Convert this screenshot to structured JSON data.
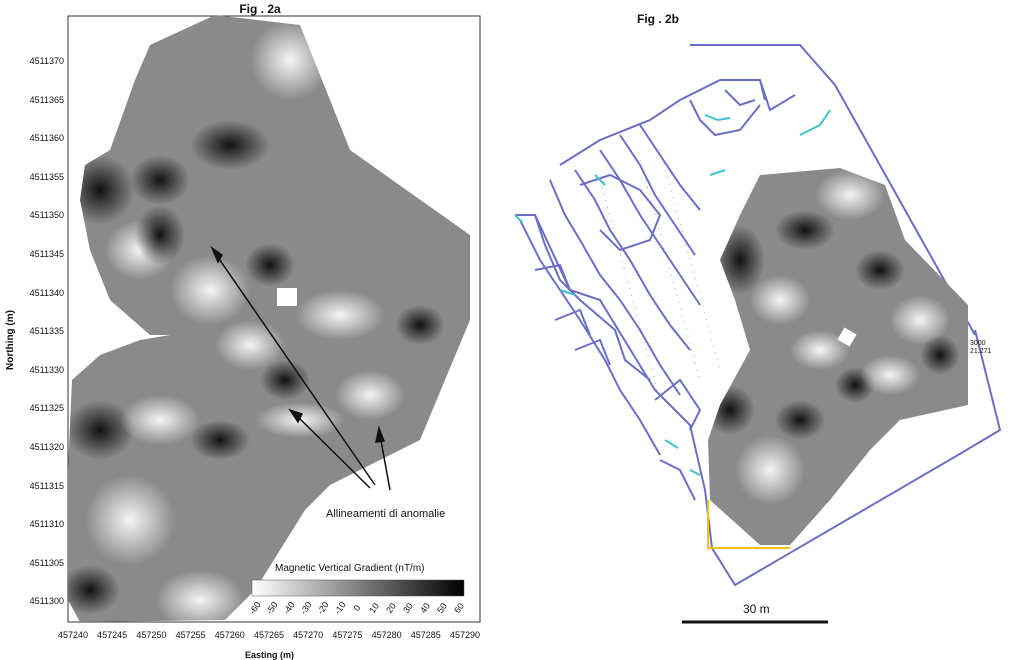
{
  "fig_a": {
    "title": "Fig . 2a",
    "ylabel": "Northing (m)",
    "xlabel": "Easting (m)",
    "yticks": [
      "4511370",
      "4511365",
      "4511360",
      "4511355",
      "4511350",
      "4511345",
      "4511340",
      "4511335",
      "4511330",
      "4511325",
      "4511320",
      "4511315",
      "4511310",
      "4511305",
      "4511300"
    ],
    "xticks": [
      "457240",
      "457245",
      "457250",
      "457255",
      "457260",
      "457265",
      "457270",
      "457275",
      "457280",
      "457285",
      "457290"
    ],
    "annotation": "Allineamenti di anomalie",
    "legend_title": "Magnetic Vertical Gradient (nT/m)",
    "legend_ticks": [
      "-60",
      "-50",
      "-40",
      "-30",
      "-20",
      "-10",
      "0",
      "10",
      "20",
      "30",
      "40",
      "50",
      "60"
    ]
  },
  "fig_b": {
    "title": "Fig . 2b",
    "marker_line1": "3000",
    "marker_line2": "21.271",
    "scale_label": "30 m"
  },
  "colors": {
    "plan_lines": "#6a6fc4",
    "plan_cyan": "#3fc0d0",
    "plan_yellow": "#f0c020"
  }
}
